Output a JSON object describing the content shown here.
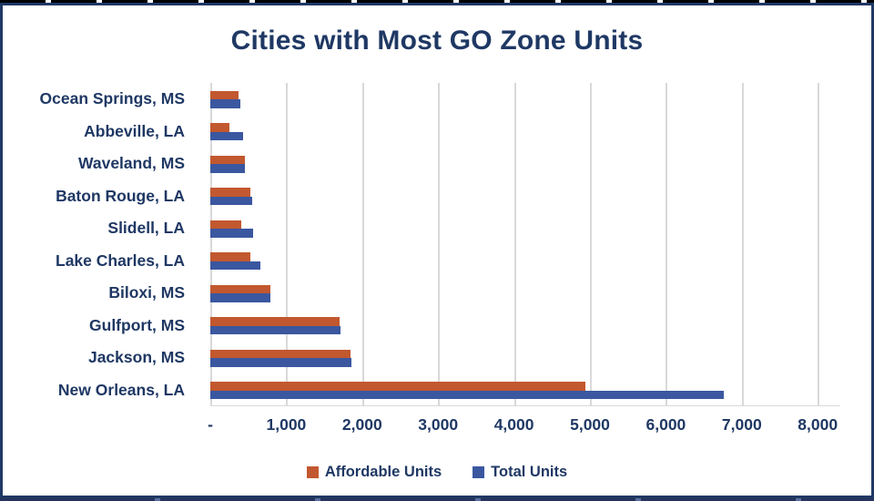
{
  "chart_data": {
    "type": "bar",
    "orientation": "horizontal",
    "title": "Cities with Most GO Zone Units",
    "categories": [
      "Ocean Springs, MS",
      "Abbeville, LA",
      "Waveland, MS",
      "Baton Rouge, LA",
      "Slidell, LA",
      "Lake Charles, LA",
      "Biloxi, MS",
      "Gulfport, MS",
      "Jackson, MS",
      "New Orleans, LA"
    ],
    "series": [
      {
        "name": "Affordable Units",
        "color": "#C2582F",
        "values": [
          375,
          255,
          450,
          525,
          405,
          525,
          790,
          1700,
          1850,
          4940
        ]
      },
      {
        "name": "Total Units",
        "color": "#3A57A0",
        "values": [
          390,
          430,
          455,
          555,
          560,
          660,
          790,
          1715,
          1860,
          6760
        ]
      }
    ],
    "xlim": [
      0,
      8000
    ],
    "ticks": [
      {
        "value": 0,
        "label": "-"
      },
      {
        "value": 1000,
        "label": "1,000"
      },
      {
        "value": 2000,
        "label": "2,000"
      },
      {
        "value": 3000,
        "label": "3,000"
      },
      {
        "value": 4000,
        "label": "4,000"
      },
      {
        "value": 5000,
        "label": "5,000"
      },
      {
        "value": 6000,
        "label": "6,000"
      },
      {
        "value": 7000,
        "label": "7,000"
      },
      {
        "value": 8000,
        "label": "8,000"
      }
    ],
    "grid": true,
    "legend_position": "bottom"
  },
  "colors": {
    "frame_border": "#1F3864",
    "text": "#1F3864",
    "gridline": "#D9D9D9",
    "background": "#FFFFFF"
  }
}
